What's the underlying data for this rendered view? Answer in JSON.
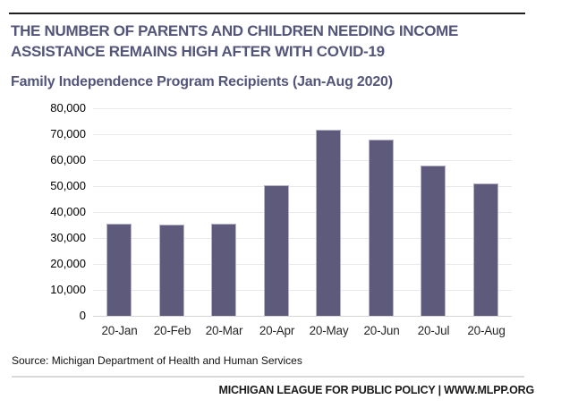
{
  "header": {
    "title_line1": "THE NUMBER OF PARENTS AND CHILDREN NEEDING INCOME",
    "title_line2": "ASSISTANCE REMAINS HIGH AFTER WITH COVID-19",
    "subtitle": "Family Independence Program Recipients (Jan-Aug 2020)"
  },
  "chart_data": {
    "type": "bar",
    "title": "Family Independence Program Recipients (Jan-Aug 2020)",
    "categories": [
      "20-Jan",
      "20-Feb",
      "20-Mar",
      "20-Apr",
      "20-May",
      "20-Jun",
      "20-Jul",
      "20-Aug"
    ],
    "values": [
      35600,
      35300,
      35600,
      50400,
      71600,
      68000,
      58000,
      50900
    ],
    "xlabel": "",
    "ylabel": "",
    "ylim": [
      0,
      80000
    ],
    "ytick_interval": 10000,
    "ytick_labels_top_to_bottom": [
      "80,000",
      "70,000",
      "60,000",
      "50,000",
      "40,000",
      "30,000",
      "20,000",
      "10,000",
      "0"
    ],
    "grid": true,
    "legend": "none",
    "bar_color": "#5e5a7c"
  },
  "footer": {
    "source": "Source: Michigan Department of Health and Human Services",
    "branding": "MICHIGAN LEAGUE FOR PUBLIC POLICY | WWW.MLPP.ORG"
  },
  "colors": {
    "title_text": "#54557a",
    "bar_fill": "#5e5a7c",
    "gridline": "#e9e9e9",
    "top_rule": "#1f1f1f",
    "footer_divider": "#d9d9d9"
  }
}
